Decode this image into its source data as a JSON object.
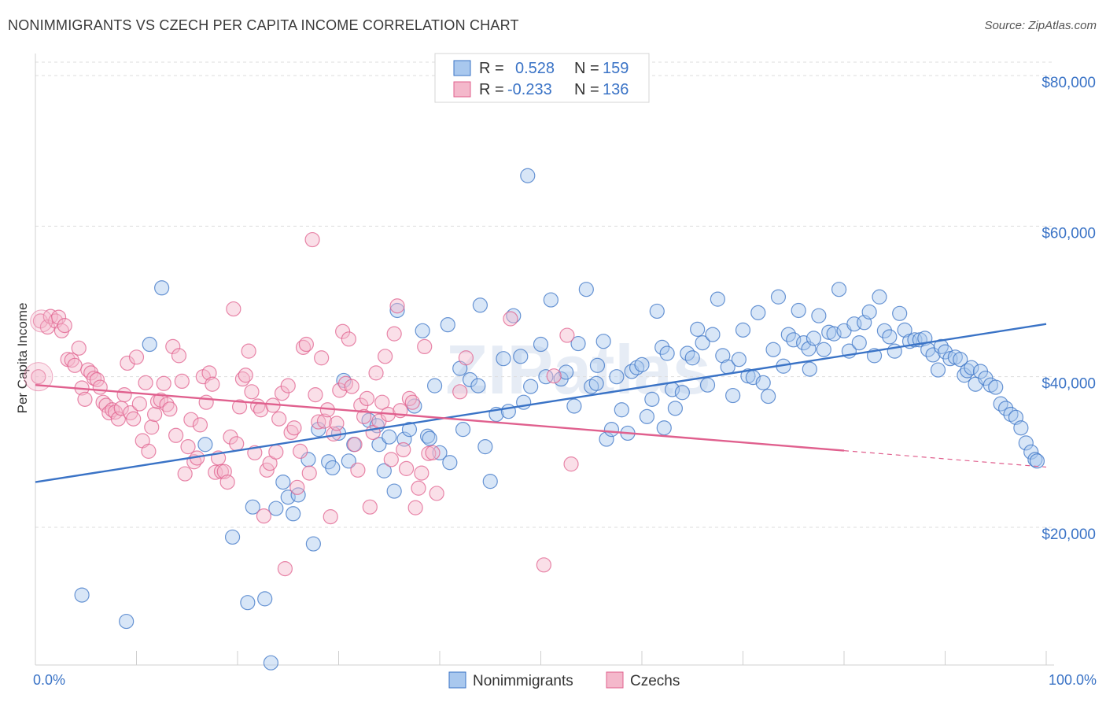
{
  "title": "NONIMMIGRANTS VS CZECH PER CAPITA INCOME CORRELATION CHART",
  "source": "Source: ZipAtlas.com",
  "watermark": "ZIPatlas",
  "colors": {
    "blue": "#3a73c6",
    "blue_fill": "#a9c8ee",
    "pink": "#e0608e",
    "pink_fill": "#f4b8cb",
    "grid": "#dddddd"
  },
  "legend": {
    "rows": [
      {
        "r_label": "R =",
        "r_value": "0.528",
        "n_label": "N =",
        "n_value": "159",
        "series": "blue"
      },
      {
        "r_label": "R =",
        "r_value": "-0.233",
        "n_label": "N =",
        "n_value": "136",
        "series": "pink"
      }
    ]
  },
  "bottom_legend": [
    {
      "label": "Nonimmigrants",
      "series": "blue"
    },
    {
      "label": "Czechs",
      "series": "pink"
    }
  ],
  "chart_data": {
    "type": "scatter",
    "title": "NONIMMIGRANTS VS CZECH PER CAPITA INCOME CORRELATION CHART",
    "xlabel": "",
    "ylabel": "Per Capita Income",
    "xlim": [
      0,
      100
    ],
    "ylim": [
      0,
      82000
    ],
    "x_tick_labels": [
      "0.0%",
      "100.0%"
    ],
    "y_ticks": [
      20000,
      40000,
      60000,
      80000
    ],
    "y_tick_labels": [
      "$20,000",
      "$40,000",
      "$60,000",
      "$80,000"
    ],
    "grid": true,
    "series": [
      {
        "name": "Nonimmigrants",
        "color": "blue",
        "trend": {
          "x0": 0,
          "y0": 26000,
          "x1": 100,
          "y1": 47000,
          "dashed_from": null
        },
        "points": [
          [
            4.6,
            11000
          ],
          [
            9,
            7500
          ],
          [
            11.3,
            44300
          ],
          [
            12.5,
            51800
          ],
          [
            16.8,
            31000
          ],
          [
            19.5,
            18700
          ],
          [
            21,
            10000
          ],
          [
            21.5,
            22700
          ],
          [
            22.7,
            10500
          ],
          [
            23.3,
            2000
          ],
          [
            23.8,
            22500
          ],
          [
            24.5,
            26000
          ],
          [
            25,
            24000
          ],
          [
            25.5,
            21800
          ],
          [
            26,
            24300
          ],
          [
            27,
            29000
          ],
          [
            27.5,
            17800
          ],
          [
            28,
            33000
          ],
          [
            29,
            28700
          ],
          [
            29.4,
            27900
          ],
          [
            30,
            32500
          ],
          [
            30.5,
            39500
          ],
          [
            31,
            28800
          ],
          [
            31.5,
            31000
          ],
          [
            33,
            34200
          ],
          [
            33.8,
            33500
          ],
          [
            34,
            31000
          ],
          [
            34.5,
            27500
          ],
          [
            35,
            32000
          ],
          [
            35.5,
            24800
          ],
          [
            35.8,
            48800
          ],
          [
            36.5,
            31700
          ],
          [
            37,
            33000
          ],
          [
            37.5,
            36100
          ],
          [
            38.3,
            46100
          ],
          [
            38.8,
            32100
          ],
          [
            39,
            31800
          ],
          [
            39.5,
            38800
          ],
          [
            40,
            29900
          ],
          [
            40.8,
            46900
          ],
          [
            41,
            28600
          ],
          [
            42,
            41100
          ],
          [
            42.3,
            33000
          ],
          [
            43,
            39600
          ],
          [
            43.8,
            38800
          ],
          [
            44,
            49500
          ],
          [
            44.5,
            30700
          ],
          [
            45,
            26100
          ],
          [
            45.6,
            35000
          ],
          [
            46.3,
            42400
          ],
          [
            46.8,
            35400
          ],
          [
            47.3,
            48100
          ],
          [
            48,
            42700
          ],
          [
            48.7,
            66700
          ],
          [
            49,
            38700
          ],
          [
            50,
            44300
          ],
          [
            50.5,
            40000
          ],
          [
            51,
            50200
          ],
          [
            52,
            39700
          ],
          [
            52.5,
            40600
          ],
          [
            53.3,
            36100
          ],
          [
            53.7,
            44400
          ],
          [
            54.5,
            51600
          ],
          [
            55,
            38700
          ],
          [
            55.5,
            39100
          ],
          [
            56.2,
            44700
          ],
          [
            56.5,
            31700
          ],
          [
            57,
            33000
          ],
          [
            57.5,
            40000
          ],
          [
            58,
            35600
          ],
          [
            58.6,
            32500
          ],
          [
            59,
            40700
          ],
          [
            59.5,
            41200
          ],
          [
            60,
            41600
          ],
          [
            60.5,
            34700
          ],
          [
            61,
            37000
          ],
          [
            61.5,
            48700
          ],
          [
            62,
            43900
          ],
          [
            62.5,
            43100
          ],
          [
            63,
            38300
          ],
          [
            63.3,
            35800
          ],
          [
            64,
            37900
          ],
          [
            64.5,
            43100
          ],
          [
            65,
            42500
          ],
          [
            65.5,
            46300
          ],
          [
            66,
            44500
          ],
          [
            66.5,
            38900
          ],
          [
            67,
            45600
          ],
          [
            67.5,
            50300
          ],
          [
            68,
            42800
          ],
          [
            68.5,
            41300
          ],
          [
            69,
            37500
          ],
          [
            69.6,
            42300
          ],
          [
            70,
            46200
          ],
          [
            70.5,
            40100
          ],
          [
            71,
            39900
          ],
          [
            71.5,
            48500
          ],
          [
            72,
            39200
          ],
          [
            72.5,
            37400
          ],
          [
            73,
            43600
          ],
          [
            73.5,
            50600
          ],
          [
            74,
            41400
          ],
          [
            74.5,
            45600
          ],
          [
            75,
            44900
          ],
          [
            75.5,
            48800
          ],
          [
            76,
            44500
          ],
          [
            76.5,
            43700
          ],
          [
            77,
            45100
          ],
          [
            77.5,
            48100
          ],
          [
            78,
            43600
          ],
          [
            78.5,
            45900
          ],
          [
            79,
            45700
          ],
          [
            79.5,
            51600
          ],
          [
            80,
            46100
          ],
          [
            80.5,
            43400
          ],
          [
            81,
            47000
          ],
          [
            81.5,
            44500
          ],
          [
            82,
            47200
          ],
          [
            82.5,
            48600
          ],
          [
            83,
            42800
          ],
          [
            83.5,
            50600
          ],
          [
            84,
            46100
          ],
          [
            84.5,
            45300
          ],
          [
            85,
            43400
          ],
          [
            85.5,
            48400
          ],
          [
            86,
            46200
          ],
          [
            86.5,
            44700
          ],
          [
            87,
            44900
          ],
          [
            87.5,
            44900
          ],
          [
            88,
            45100
          ],
          [
            88.3,
            43600
          ],
          [
            88.8,
            42900
          ],
          [
            89.3,
            40900
          ],
          [
            89.6,
            44000
          ],
          [
            90,
            43300
          ],
          [
            90.5,
            42400
          ],
          [
            91,
            42600
          ],
          [
            91.5,
            42300
          ],
          [
            91.9,
            40200
          ],
          [
            92.2,
            40800
          ],
          [
            92.6,
            41200
          ],
          [
            93,
            39000
          ],
          [
            93.5,
            40700
          ],
          [
            94,
            39800
          ],
          [
            94.5,
            38900
          ],
          [
            95,
            38600
          ],
          [
            95.5,
            36400
          ],
          [
            96,
            35800
          ],
          [
            96.5,
            35000
          ],
          [
            97,
            34600
          ],
          [
            97.5,
            33200
          ],
          [
            98,
            31200
          ],
          [
            98.5,
            30000
          ],
          [
            98.9,
            29000
          ],
          [
            99.1,
            28800
          ],
          [
            62.2,
            33200
          ],
          [
            55.6,
            41500
          ],
          [
            48.3,
            36600
          ],
          [
            76.6,
            41000
          ]
        ]
      },
      {
        "name": "Czechs",
        "color": "pink",
        "trend": {
          "x0": 0,
          "y0": 38900,
          "x1": 100,
          "y1": 28000,
          "dashed_from": 80
        },
        "points": [
          [
            0.3,
            40000
          ],
          [
            0.5,
            47400
          ],
          [
            1.2,
            46600
          ],
          [
            1.5,
            48000
          ],
          [
            2,
            47400
          ],
          [
            2.3,
            47900
          ],
          [
            2.6,
            46100
          ],
          [
            2.9,
            46800
          ],
          [
            3.2,
            42300
          ],
          [
            3.6,
            42200
          ],
          [
            3.9,
            41500
          ],
          [
            4.3,
            43800
          ],
          [
            4.6,
            38500
          ],
          [
            4.9,
            37000
          ],
          [
            5.2,
            40900
          ],
          [
            5.5,
            40500
          ],
          [
            5.8,
            39800
          ],
          [
            6.1,
            39600
          ],
          [
            6.4,
            38600
          ],
          [
            6.7,
            36600
          ],
          [
            7,
            36200
          ],
          [
            7.3,
            35200
          ],
          [
            7.6,
            35600
          ],
          [
            7.9,
            35300
          ],
          [
            8.2,
            34400
          ],
          [
            8.5,
            35800
          ],
          [
            8.8,
            37600
          ],
          [
            9.1,
            41800
          ],
          [
            9.4,
            35200
          ],
          [
            9.7,
            34400
          ],
          [
            10,
            42600
          ],
          [
            10.3,
            36400
          ],
          [
            10.6,
            31500
          ],
          [
            10.9,
            39200
          ],
          [
            11.2,
            30100
          ],
          [
            11.5,
            33300
          ],
          [
            11.8,
            35000
          ],
          [
            12.1,
            36700
          ],
          [
            12.4,
            36900
          ],
          [
            12.7,
            39100
          ],
          [
            13,
            36300
          ],
          [
            13.3,
            35700
          ],
          [
            13.6,
            44000
          ],
          [
            13.9,
            32200
          ],
          [
            14.2,
            42800
          ],
          [
            14.5,
            39400
          ],
          [
            14.8,
            27100
          ],
          [
            15.1,
            30700
          ],
          [
            15.4,
            34300
          ],
          [
            15.7,
            28700
          ],
          [
            16,
            29200
          ],
          [
            16.3,
            33600
          ],
          [
            16.6,
            40000
          ],
          [
            16.9,
            36600
          ],
          [
            17.2,
            40500
          ],
          [
            17.5,
            39000
          ],
          [
            17.8,
            27300
          ],
          [
            18.1,
            29200
          ],
          [
            18.4,
            27400
          ],
          [
            18.7,
            27400
          ],
          [
            19,
            26000
          ],
          [
            19.3,
            32000
          ],
          [
            19.6,
            49000
          ],
          [
            19.9,
            31100
          ],
          [
            20.2,
            36000
          ],
          [
            20.5,
            39700
          ],
          [
            20.8,
            40200
          ],
          [
            21.1,
            43400
          ],
          [
            21.4,
            38000
          ],
          [
            21.7,
            29900
          ],
          [
            22,
            36100
          ],
          [
            22.3,
            35600
          ],
          [
            22.6,
            21500
          ],
          [
            22.9,
            27600
          ],
          [
            23.2,
            28500
          ],
          [
            23.5,
            36200
          ],
          [
            23.8,
            30000
          ],
          [
            24.1,
            34400
          ],
          [
            24.4,
            37800
          ],
          [
            24.7,
            14500
          ],
          [
            25,
            38800
          ],
          [
            25.3,
            32600
          ],
          [
            25.6,
            33200
          ],
          [
            25.9,
            25300
          ],
          [
            26.2,
            30100
          ],
          [
            26.5,
            43900
          ],
          [
            26.8,
            44300
          ],
          [
            27.1,
            27200
          ],
          [
            27.4,
            58200
          ],
          [
            27.7,
            37600
          ],
          [
            28,
            34000
          ],
          [
            28.3,
            42500
          ],
          [
            28.6,
            34100
          ],
          [
            28.9,
            35600
          ],
          [
            29.2,
            21400
          ],
          [
            29.5,
            32400
          ],
          [
            29.8,
            33800
          ],
          [
            30.1,
            38200
          ],
          [
            30.4,
            46000
          ],
          [
            30.7,
            39100
          ],
          [
            31,
            45000
          ],
          [
            31.3,
            38700
          ],
          [
            31.6,
            31000
          ],
          [
            31.9,
            27600
          ],
          [
            32.2,
            36200
          ],
          [
            32.5,
            34700
          ],
          [
            32.8,
            37100
          ],
          [
            33.1,
            22700
          ],
          [
            33.4,
            32600
          ],
          [
            33.7,
            40500
          ],
          [
            34,
            34100
          ],
          [
            34.3,
            36600
          ],
          [
            34.6,
            42700
          ],
          [
            34.9,
            35000
          ],
          [
            35.2,
            29000
          ],
          [
            35.5,
            45700
          ],
          [
            35.8,
            49400
          ],
          [
            36.1,
            35500
          ],
          [
            36.4,
            30300
          ],
          [
            36.7,
            27800
          ],
          [
            37,
            37100
          ],
          [
            37.3,
            36600
          ],
          [
            37.6,
            22600
          ],
          [
            37.9,
            25200
          ],
          [
            38.2,
            27200
          ],
          [
            38.5,
            44000
          ],
          [
            38.9,
            29800
          ],
          [
            39.3,
            29900
          ],
          [
            39.7,
            24500
          ],
          [
            42,
            38000
          ],
          [
            47,
            47700
          ],
          [
            50.3,
            15000
          ],
          [
            52.6,
            45500
          ],
          [
            53,
            28400
          ],
          [
            51.3,
            40100
          ],
          [
            42.6,
            42500
          ]
        ]
      }
    ]
  }
}
